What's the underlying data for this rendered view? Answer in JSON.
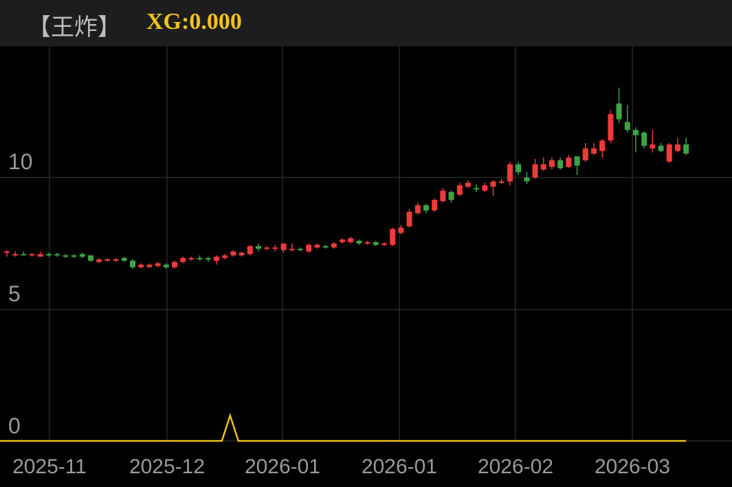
{
  "header": {
    "title": "【王炸】",
    "indicator": "XG:0.000"
  },
  "colors": {
    "up": "#f03a3a",
    "down": "#3da444",
    "grid": "#3a3a3a",
    "indicator": "#f2c21a"
  },
  "chart_data": {
    "type": "candlestick",
    "y_ticks": [
      "10",
      "5",
      "0"
    ],
    "y_tick_values": [
      10,
      5,
      0
    ],
    "x_ticks": [
      "2025-11",
      "2025-12",
      "2026-01",
      "2026-01",
      "2026-02",
      "2026-03"
    ],
    "candles": [
      [
        7.15,
        7.2,
        7.05,
        7.0,
        7.25
      ],
      [
        7.05,
        7.1,
        7.05,
        7.0,
        7.2
      ],
      [
        7.1,
        7.05,
        7.15,
        7.05,
        7.2
      ],
      [
        7.05,
        7.1,
        7.0,
        7.0,
        7.15
      ],
      [
        7.0,
        7.1,
        7.15,
        7.0,
        7.2
      ],
      [
        7.1,
        7.05,
        7.1,
        7.0,
        7.15
      ],
      [
        7.1,
        7.05,
        7.05,
        7.0,
        7.15
      ],
      [
        7.05,
        7.0,
        7.0,
        6.95,
        7.1
      ],
      [
        7.05,
        7.0,
        7.05,
        6.95,
        7.1
      ],
      [
        7.1,
        7.0,
        7.1,
        6.95,
        7.15
      ],
      [
        7.05,
        6.85,
        6.8,
        6.8,
        7.05
      ],
      [
        6.8,
        6.9,
        6.85,
        6.75,
        6.95
      ],
      [
        6.85,
        6.9,
        6.9,
        6.8,
        6.95
      ],
      [
        6.85,
        6.9,
        6.85,
        6.8,
        6.95
      ],
      [
        6.95,
        6.85,
        6.85,
        6.8,
        7.0
      ],
      [
        6.85,
        6.6,
        6.6,
        6.55,
        6.9
      ],
      [
        6.6,
        6.7,
        6.6,
        6.55,
        6.75
      ],
      [
        6.6,
        6.7,
        6.7,
        6.6,
        6.75
      ],
      [
        6.65,
        6.75,
        6.7,
        6.6,
        6.8
      ],
      [
        6.7,
        6.6,
        6.65,
        6.55,
        6.75
      ],
      [
        6.6,
        6.8,
        6.6,
        6.55,
        6.85
      ],
      [
        6.8,
        6.95,
        6.8,
        6.75,
        7.0
      ],
      [
        6.9,
        6.95,
        6.9,
        6.85,
        7.0
      ],
      [
        6.95,
        6.9,
        6.9,
        6.85,
        7.05
      ],
      [
        6.95,
        6.9,
        6.9,
        6.8,
        7.0
      ],
      [
        6.85,
        7.0,
        6.85,
        6.7,
        7.05
      ],
      [
        6.95,
        7.05,
        7.0,
        6.9,
        7.1
      ],
      [
        7.05,
        7.2,
        7.1,
        7.0,
        7.25
      ],
      [
        7.05,
        7.15,
        7.05,
        7.0,
        7.2
      ],
      [
        7.1,
        7.4,
        7.15,
        7.05,
        7.45
      ],
      [
        7.4,
        7.3,
        7.25,
        7.2,
        7.5
      ],
      [
        7.3,
        7.35,
        7.3,
        7.25,
        7.4
      ],
      [
        7.3,
        7.35,
        7.35,
        7.2,
        7.45
      ],
      [
        7.25,
        7.5,
        7.25,
        7.15,
        7.5
      ],
      [
        7.25,
        7.3,
        7.35,
        7.2,
        7.5
      ],
      [
        7.3,
        7.25,
        7.25,
        7.2,
        7.35
      ],
      [
        7.2,
        7.45,
        7.2,
        7.15,
        7.5
      ],
      [
        7.35,
        7.45,
        7.4,
        7.3,
        7.5
      ],
      [
        7.4,
        7.35,
        7.35,
        7.3,
        7.45
      ],
      [
        7.35,
        7.5,
        7.4,
        7.3,
        7.55
      ],
      [
        7.55,
        7.65,
        7.55,
        7.5,
        7.7
      ],
      [
        7.55,
        7.7,
        7.55,
        7.5,
        7.75
      ],
      [
        7.6,
        7.5,
        7.5,
        7.45,
        7.65
      ],
      [
        7.5,
        7.55,
        7.55,
        7.45,
        7.6
      ],
      [
        7.55,
        7.45,
        7.45,
        7.4,
        7.6
      ],
      [
        7.45,
        7.5,
        7.45,
        7.4,
        7.55
      ],
      [
        7.45,
        8.05,
        7.45,
        7.4,
        8.1
      ],
      [
        7.9,
        8.1,
        7.9,
        7.85,
        8.2
      ],
      [
        8.15,
        8.7,
        8.15,
        8.1,
        8.8
      ],
      [
        8.65,
        8.95,
        8.7,
        8.6,
        9.05
      ],
      [
        8.95,
        8.75,
        8.75,
        8.65,
        9.0
      ],
      [
        8.75,
        9.15,
        8.75,
        8.7,
        9.2
      ],
      [
        9.1,
        9.5,
        9.1,
        9.05,
        9.6
      ],
      [
        9.45,
        9.15,
        9.15,
        9.05,
        9.5
      ],
      [
        9.35,
        9.7,
        9.35,
        9.3,
        9.8
      ],
      [
        9.65,
        9.8,
        9.65,
        9.6,
        9.9
      ],
      [
        9.6,
        9.55,
        9.5,
        9.45,
        9.75
      ],
      [
        9.5,
        9.7,
        9.5,
        9.45,
        9.8
      ],
      [
        9.65,
        9.85,
        9.7,
        9.3,
        9.9
      ],
      [
        9.85,
        9.85,
        9.85,
        9.75,
        9.95
      ],
      [
        9.85,
        10.5,
        9.75,
        9.7,
        10.6
      ],
      [
        10.5,
        10.2,
        10.2,
        10.1,
        10.6
      ],
      [
        10.0,
        9.85,
        9.8,
        9.75,
        10.2
      ],
      [
        10.0,
        10.5,
        10.0,
        9.95,
        10.7
      ],
      [
        10.3,
        10.5,
        10.3,
        10.25,
        10.75
      ],
      [
        10.4,
        10.65,
        10.35,
        10.3,
        10.75
      ],
      [
        10.65,
        10.35,
        10.35,
        10.3,
        10.75
      ],
      [
        10.4,
        10.75,
        10.4,
        10.35,
        10.85
      ],
      [
        10.8,
        10.45,
        10.4,
        10.1,
        10.8
      ],
      [
        10.65,
        11.1,
        10.7,
        10.6,
        11.3
      ],
      [
        10.9,
        11.1,
        10.9,
        10.85,
        11.3
      ],
      [
        11.0,
        11.4,
        11.0,
        10.75,
        11.45
      ],
      [
        11.4,
        12.4,
        11.4,
        11.3,
        12.55
      ],
      [
        12.8,
        12.2,
        12.15,
        12.05,
        13.4
      ],
      [
        12.1,
        11.8,
        11.8,
        11.7,
        12.75
      ],
      [
        11.8,
        11.6,
        11.6,
        10.95,
        11.9
      ],
      [
        11.7,
        11.2,
        11.15,
        11.1,
        11.75
      ],
      [
        11.1,
        11.25,
        11.05,
        10.95,
        11.8
      ],
      [
        11.2,
        11.0,
        11.0,
        10.95,
        11.3
      ],
      [
        10.6,
        11.25,
        10.6,
        10.55,
        11.3
      ],
      [
        11.0,
        11.25,
        11.0,
        10.95,
        11.5
      ],
      [
        11.25,
        10.9,
        10.9,
        10.85,
        11.5
      ]
    ],
    "xg_indicator": {
      "values": [
        0,
        1,
        0
      ],
      "peak_index": 24
    }
  }
}
